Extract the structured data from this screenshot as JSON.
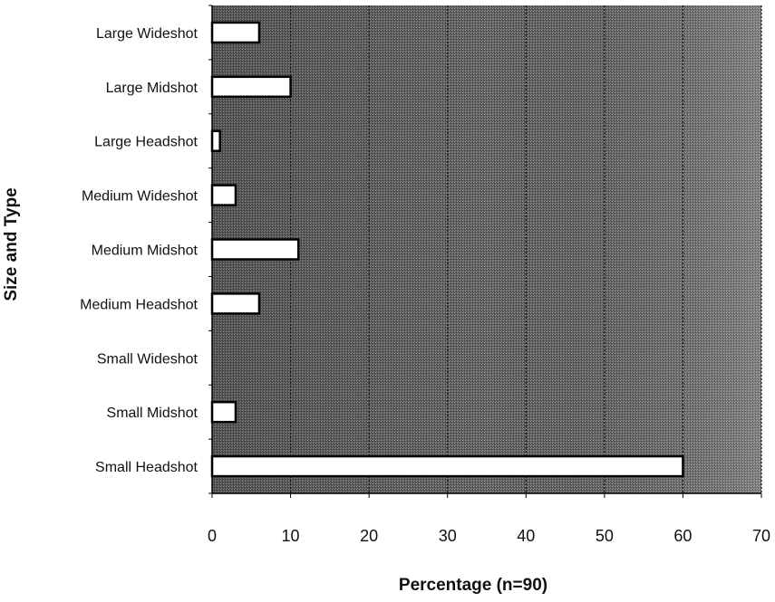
{
  "chart_data": {
    "type": "bar",
    "orientation": "horizontal",
    "categories": [
      "Large Wideshot",
      "Large Midshot",
      "Large Headshot",
      "Medium Wideshot",
      "Medium Midshot",
      "Medium Headshot",
      "Small Wideshot",
      "Small Midshot",
      "Small Headshot"
    ],
    "values": [
      6,
      10,
      1,
      3,
      11,
      6,
      0,
      3,
      60
    ],
    "xlabel": "Percentage (n=90)",
    "ylabel": "Size and Type",
    "xlim": [
      0,
      70
    ],
    "xticks": [
      0,
      10,
      20,
      30,
      40,
      50,
      60,
      70
    ],
    "xtick_labels": [
      "0",
      "10",
      "20",
      "30",
      "40",
      "50",
      "60",
      "70"
    ],
    "grid": true,
    "legend": "none",
    "colors": {
      "bar_fill": "#ffffff",
      "bar_stroke": "#000000",
      "plot_background": "#5a5a5a",
      "gridline": "#111111"
    }
  }
}
